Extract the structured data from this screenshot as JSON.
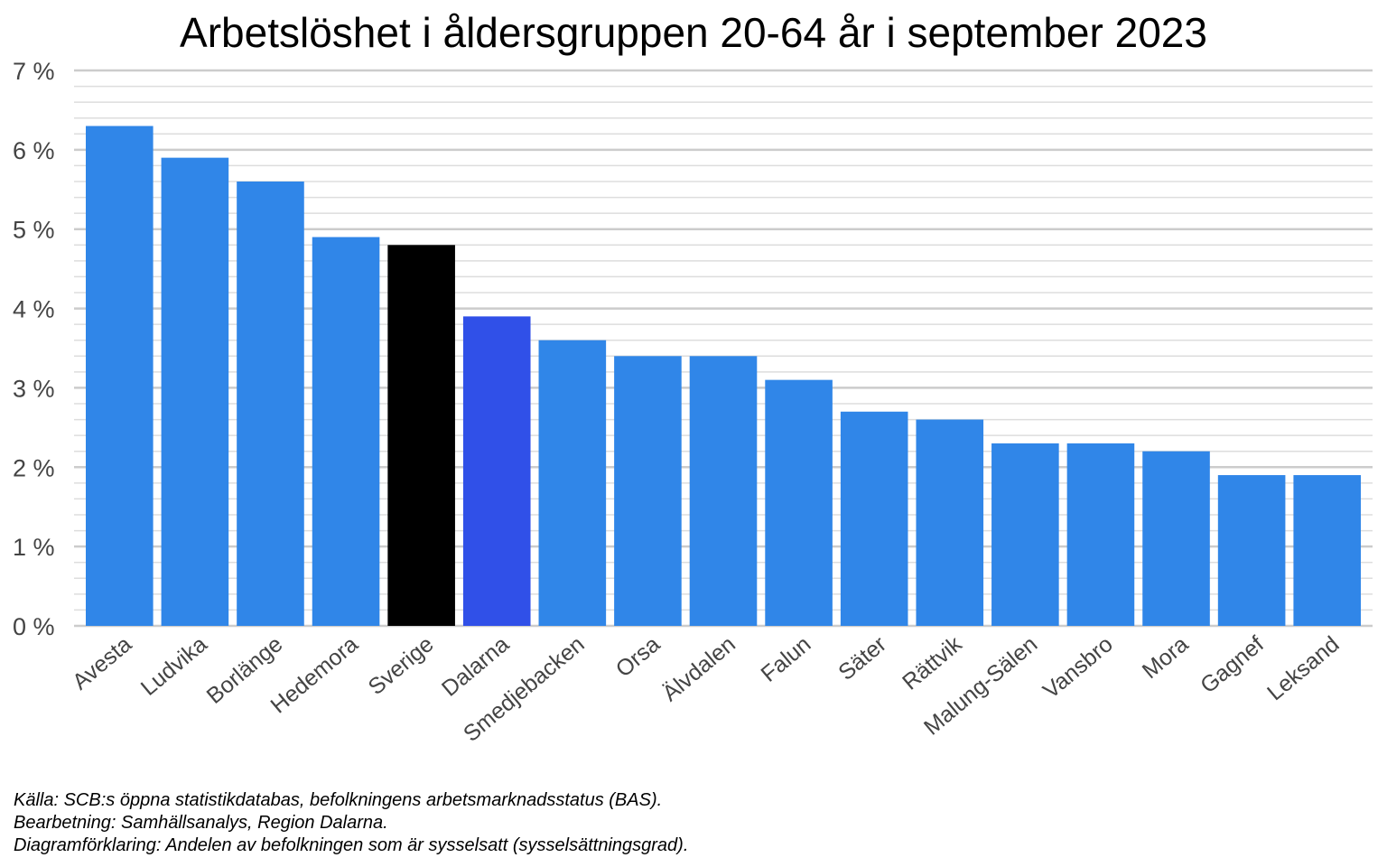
{
  "chart_data": {
    "type": "bar",
    "title": "Arbetslöshet i åldersgruppen 20-64 år i september 2023",
    "xlabel": "",
    "ylabel": "",
    "ylim": [
      0,
      7
    ],
    "yticks": [
      "0 %",
      "1 %",
      "2 %",
      "3 %",
      "4 %",
      "5 %",
      "6 %",
      "7 %"
    ],
    "grid": true,
    "categories": [
      "Avesta",
      "Ludvika",
      "Borlänge",
      "Hedemora",
      "Sverige",
      "Dalarna",
      "Smedjebacken",
      "Orsa",
      "Älvdalen",
      "Falun",
      "Säter",
      "Rättvik",
      "Malung-Sälen",
      "Vansbro",
      "Mora",
      "Gagnef",
      "Leksand"
    ],
    "values": [
      6.3,
      5.9,
      5.6,
      4.9,
      4.8,
      3.9,
      3.6,
      3.4,
      3.4,
      3.1,
      2.7,
      2.6,
      2.3,
      2.3,
      2.2,
      1.9,
      1.9
    ],
    "colors": {
      "default": "#3086E8",
      "Sverige": "#000000",
      "Dalarna": "#3050E8"
    }
  },
  "notes": {
    "source": "Källa: SCB:s öppna statistikdatabas, befolkningens arbetsmarknadsstatus (BAS).",
    "processing": "Bearbetning: Samhällsanalys, Region Dalarna.",
    "explanation": "Diagramförklaring: Andelen av befolkningen som är sysselsatt (sysselsättningsgrad)."
  }
}
